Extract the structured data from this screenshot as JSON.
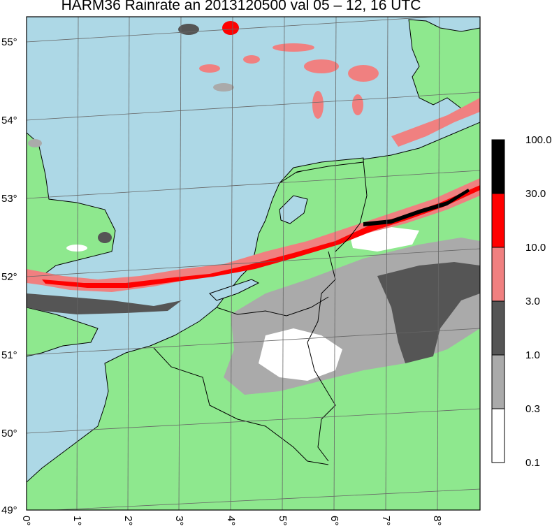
{
  "title": "HARM36 Rainrate an 2013120500 val 05 – 12, 16 UTC",
  "map": {
    "lat_labels": [
      "55°",
      "54°",
      "53°",
      "52°",
      "51°",
      "50°",
      "49°"
    ],
    "lon_labels": [
      "0°",
      "1°",
      "2°",
      "3°",
      "4°",
      "5°",
      "6°",
      "7°",
      "8°"
    ],
    "colors": {
      "sea": "#add8e6",
      "land": "#8ee88e",
      "border": "#000000",
      "grid": "#666666"
    }
  },
  "colorbar": {
    "labels": [
      "100.0",
      "30.0",
      "10.0",
      "3.0",
      "1.0",
      "0.3",
      "0.1"
    ],
    "colors": [
      "#000000",
      "#ff0000",
      "#f08080",
      "#555555",
      "#aaaaaa",
      "#ffffff"
    ]
  }
}
